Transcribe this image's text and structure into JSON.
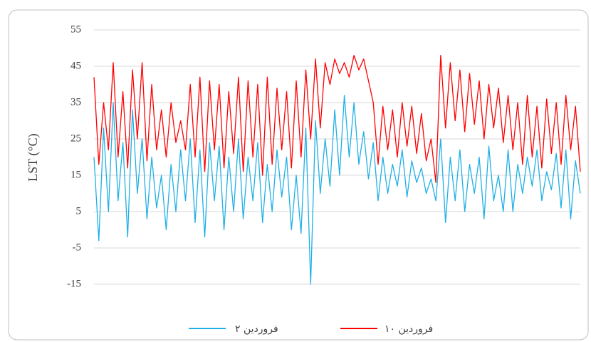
{
  "chart_data": {
    "type": "line",
    "ylabel": "LST (°C)",
    "ylim": [
      -15,
      55
    ],
    "yticks": [
      -15,
      -5,
      5,
      15,
      25,
      35,
      45,
      55
    ],
    "grid": true,
    "series": [
      {
        "name": "۲ فروردین",
        "color": "#1fb0e6",
        "values": [
          20,
          -3,
          28,
          5,
          35,
          8,
          24,
          -2,
          33,
          10,
          25,
          3,
          20,
          6,
          15,
          0,
          18,
          5,
          22,
          8,
          25,
          2,
          22,
          -2,
          24,
          8,
          23,
          0,
          20,
          5,
          25,
          3,
          20,
          8,
          24,
          2,
          18,
          5,
          22,
          9,
          20,
          0,
          15,
          -1,
          28,
          -15,
          30,
          10,
          25,
          12,
          33,
          15,
          37,
          20,
          35,
          18,
          27,
          14,
          24,
          8,
          20,
          10,
          18,
          12,
          22,
          9,
          19,
          13,
          17,
          10,
          14,
          8,
          25,
          2,
          20,
          8,
          22,
          5,
          18,
          10,
          20,
          3,
          23,
          8,
          15,
          5,
          22,
          5,
          18,
          10,
          20,
          12,
          22,
          8,
          16,
          11,
          21,
          6,
          22,
          3,
          19,
          10
        ]
      },
      {
        "name": "۱۰ فروردین",
        "color": "#ff0000",
        "values": [
          42,
          18,
          35,
          22,
          46,
          20,
          38,
          17,
          44,
          25,
          46,
          19,
          40,
          22,
          33,
          20,
          35,
          24,
          30,
          22,
          40,
          20,
          42,
          16,
          41,
          22,
          40,
          17,
          38,
          21,
          42,
          16,
          41,
          20,
          40,
          15,
          42,
          18,
          39,
          22,
          38,
          17,
          41,
          20,
          44,
          25,
          47,
          28,
          46,
          40,
          47,
          43,
          46,
          42,
          48,
          44,
          47,
          41,
          35,
          18,
          34,
          22,
          33,
          20,
          35,
          23,
          34,
          21,
          32,
          19,
          25,
          13,
          48,
          28,
          46,
          30,
          44,
          27,
          43,
          29,
          41,
          25,
          40,
          28,
          39,
          24,
          37,
          22,
          35,
          18,
          37,
          20,
          34,
          17,
          36,
          21,
          35,
          18,
          37,
          22,
          34,
          16
        ]
      }
    ]
  }
}
